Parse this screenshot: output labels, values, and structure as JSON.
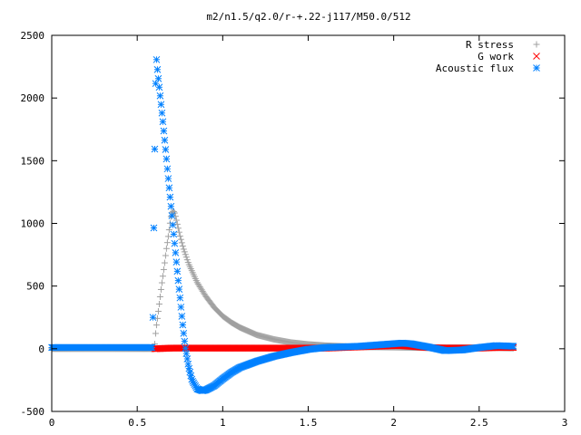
{
  "chart_data": {
    "type": "scatter",
    "title": "m2/n1.5/q2.0/r-+.22-j117/M50.0/512",
    "xlabel": "",
    "ylabel": "",
    "xlim": [
      0,
      3
    ],
    "ylim": [
      -500,
      2500
    ],
    "xticks": [
      0,
      0.5,
      1,
      1.5,
      2,
      2.5,
      3
    ],
    "xtick_labels": [
      "0",
      "0.5",
      "1",
      "1.5",
      "2",
      "2.5",
      "3"
    ],
    "yticks": [
      -500,
      0,
      500,
      1000,
      1500,
      2000,
      2500
    ],
    "ytick_labels": [
      "-500",
      "0",
      "500",
      "1000",
      "1500",
      "2000",
      "2500"
    ],
    "grid": false,
    "legend_position": "top-right",
    "series": [
      {
        "name": "R stress",
        "marker": "plus",
        "color": "#a0a0a0",
        "x": [
          0,
          0.5,
          0.6,
          0.61,
          0.62,
          0.63,
          0.64,
          0.65,
          0.66,
          0.67,
          0.68,
          0.69,
          0.7,
          0.71,
          0.72,
          0.73,
          0.74,
          0.75,
          0.77,
          0.8,
          0.85,
          0.9,
          0.95,
          1.0,
          1.05,
          1.1,
          1.2,
          1.3,
          1.4,
          1.5,
          1.6,
          1.8,
          2.0,
          2.2,
          2.4,
          2.6,
          2.7
        ],
        "y": [
          0,
          0,
          0,
          160,
          260,
          370,
          480,
          580,
          680,
          790,
          880,
          980,
          1080,
          1100,
          1080,
          1020,
          960,
          900,
          800,
          680,
          530,
          420,
          330,
          260,
          210,
          170,
          110,
          75,
          50,
          35,
          25,
          15,
          12,
          8,
          10,
          8,
          5
        ]
      },
      {
        "name": "G work",
        "marker": "cross",
        "color": "#ff0000",
        "x": [
          0.6,
          0.7,
          0.8,
          0.9,
          1.0,
          1.1,
          1.2,
          1.3,
          1.4,
          1.5,
          1.6,
          1.7,
          1.8,
          1.9,
          2.0,
          2.05,
          2.1,
          2.2,
          2.3,
          2.4,
          2.5,
          2.6,
          2.7
        ],
        "y": [
          0,
          5,
          5,
          5,
          5,
          5,
          5,
          5,
          5,
          5,
          5,
          10,
          15,
          20,
          25,
          25,
          20,
          10,
          5,
          5,
          5,
          10,
          10
        ]
      },
      {
        "name": "Acoustic flux",
        "marker": "star",
        "color": "#0080ff",
        "x": [
          0,
          0.3,
          0.59,
          0.6,
          0.61,
          0.62,
          0.63,
          0.64,
          0.65,
          0.66,
          0.67,
          0.68,
          0.69,
          0.7,
          0.71,
          0.72,
          0.73,
          0.74,
          0.75,
          0.76,
          0.77,
          0.78,
          0.8,
          0.82,
          0.85,
          0.88,
          0.9,
          0.95,
          1.0,
          1.05,
          1.1,
          1.2,
          1.3,
          1.4,
          1.5,
          1.6,
          1.7,
          1.8,
          1.9,
          2.0,
          2.05,
          2.1,
          2.2,
          2.3,
          2.4,
          2.5,
          2.6,
          2.7
        ],
        "y": [
          10,
          10,
          10,
          1360,
          2350,
          2200,
          2070,
          1940,
          1810,
          1670,
          1530,
          1380,
          1240,
          1100,
          960,
          820,
          680,
          540,
          410,
          270,
          140,
          20,
          -140,
          -250,
          -320,
          -335,
          -330,
          -295,
          -240,
          -190,
          -150,
          -100,
          -60,
          -30,
          -5,
          10,
          15,
          20,
          30,
          40,
          45,
          40,
          15,
          -15,
          -10,
          10,
          25,
          20
        ]
      }
    ]
  }
}
